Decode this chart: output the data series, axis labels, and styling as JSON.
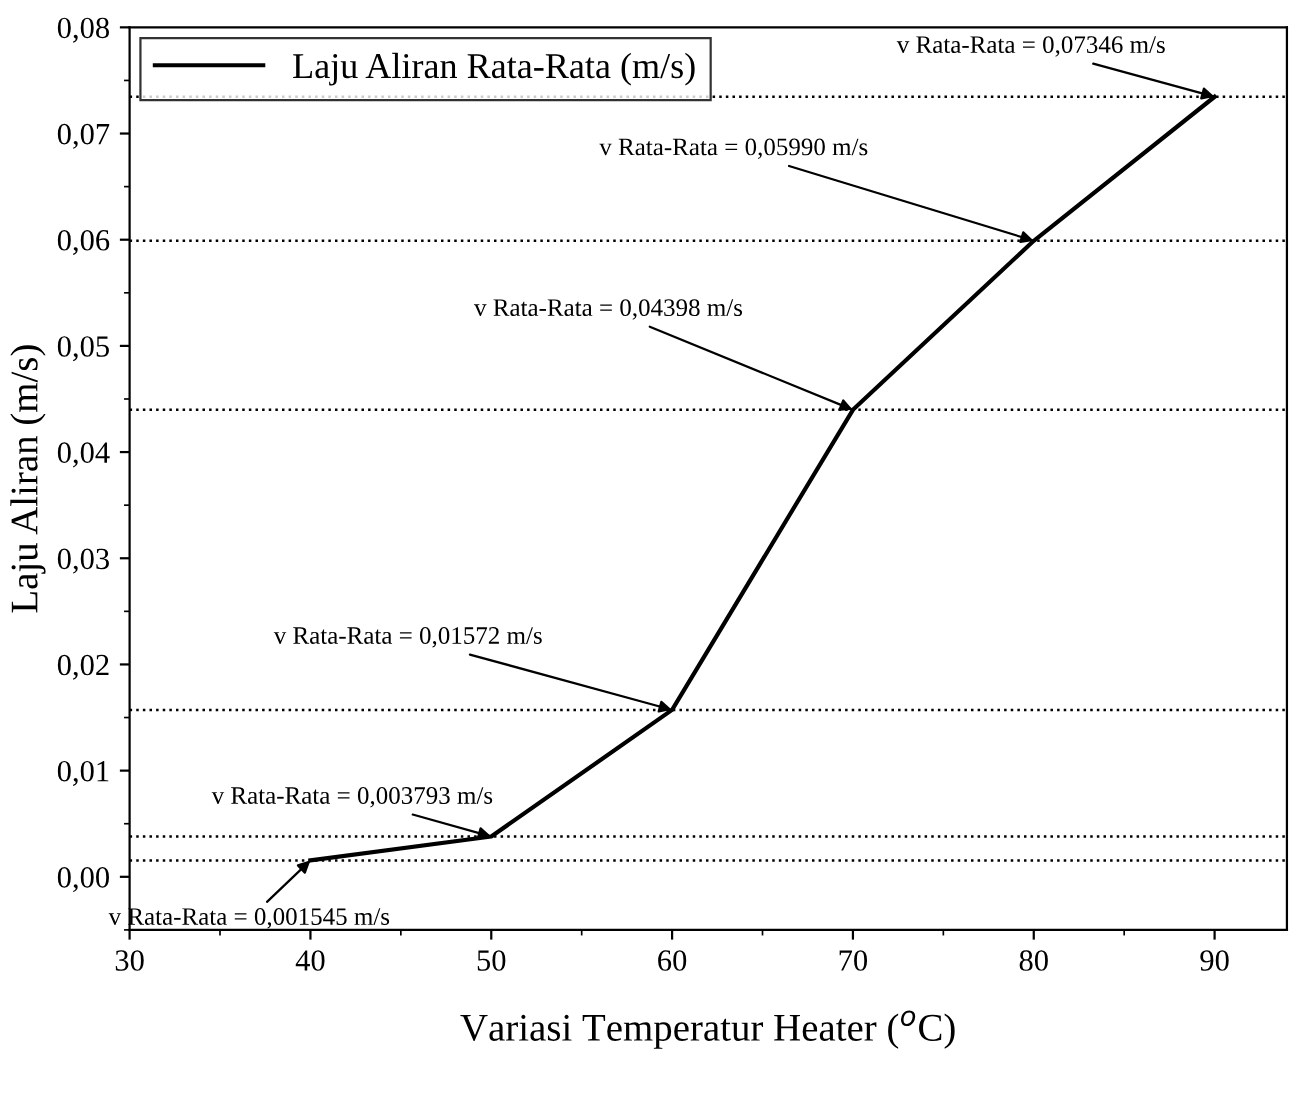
{
  "chart_data": {
    "type": "line",
    "xlabel": "Variasi Temperatur Heater ($^{o}$C)",
    "ylabel": "Laju Aliran (m/s)",
    "x": [
      40,
      50,
      60,
      70,
      80,
      90
    ],
    "series": [
      {
        "name": "Laju Aliran Rata-Rata (m/s)",
        "color": "#000000",
        "values": [
          0.001545,
          0.003793,
          0.01572,
          0.04398,
          0.0599,
          0.07346
        ]
      }
    ],
    "xlim": [
      30,
      94
    ],
    "xticks": [
      30,
      40,
      50,
      60,
      70,
      80,
      90
    ],
    "ylim": [
      -0.005,
      0.08
    ],
    "yticks": [
      {
        "value": 0,
        "label": "0,00"
      },
      {
        "value": 0.01,
        "label": "0,01"
      },
      {
        "value": 0.02,
        "label": "0,02"
      },
      {
        "value": 0.03,
        "label": "0,03"
      },
      {
        "value": 0.04,
        "label": "0,04"
      },
      {
        "value": 0.05,
        "label": "0,05"
      },
      {
        "value": 0.06,
        "label": "0,06"
      },
      {
        "value": 0.07,
        "label": "0,07"
      },
      {
        "value": 0.08,
        "label": "0,08"
      }
    ],
    "ref_lines": [
      {
        "axis": "y",
        "value": 0.001545,
        "color": "#000000",
        "line_style": "dotted"
      },
      {
        "axis": "y",
        "value": 0.003793,
        "color": "#000000",
        "line_style": "dotted"
      },
      {
        "axis": "y",
        "value": 0.01572,
        "color": "#000000",
        "line_style": "dotted"
      },
      {
        "axis": "y",
        "value": 0.04398,
        "color": "#000000",
        "line_style": "dotted"
      },
      {
        "axis": "y",
        "value": 0.0599,
        "color": "#000000",
        "line_style": "dotted"
      },
      {
        "axis": "y",
        "value": 0.07346,
        "color": "#000000",
        "line_style": "dotted"
      }
    ],
    "annotations": [
      {
        "text": "v Rata-Rata = 0,001545 m/s",
        "x": 40,
        "y": 0.001545
      },
      {
        "text": "v Rata-Rata = 0,003793 m/s",
        "x": 50,
        "y": 0.003793
      },
      {
        "text": "v Rata-Rata = 0,01572 m/s",
        "x": 60,
        "y": 0.01572
      },
      {
        "text": "v Rata-Rata = 0,04398 m/s",
        "x": 70,
        "y": 0.04398
      },
      {
        "text": "v Rata-Rata = 0,05990 m/s",
        "x": 80,
        "y": 0.0599
      },
      {
        "text": "v Rata-Rata = 0,07346 m/s",
        "x": 90,
        "y": 0.07346
      }
    ],
    "legend": "top left",
    "grid": false,
    "marker": "none",
    "line_style": "solid"
  }
}
